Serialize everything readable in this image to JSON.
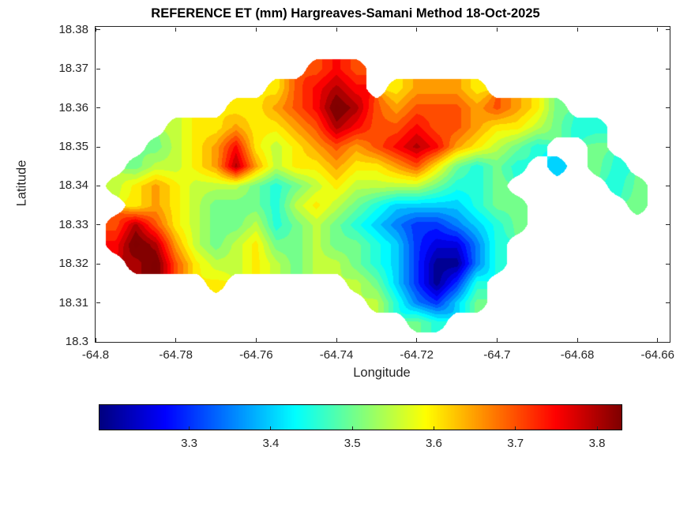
{
  "colors": {
    "background": "#ffffff",
    "axis_frame": "#262626",
    "axis_text": "#262626",
    "title_text": "#000000",
    "colorbar_border": "#000000"
  },
  "chart_data": {
    "type": "heatmap",
    "subtype": "filled-contour-map",
    "title": "REFERENCE ET (mm) Hargreaves-Samani Method  18-Oct-2025",
    "xlabel": "Longitude",
    "ylabel": "Latitude",
    "xlim": [
      -64.8,
      -64.657
    ],
    "ylim": [
      18.3,
      18.3808
    ],
    "xticks": [
      -64.8,
      -64.78,
      -64.76,
      -64.74,
      -64.72,
      -64.7,
      -64.68,
      -64.66
    ],
    "xtick_labels": [
      "-64.8",
      "-64.78",
      "-64.76",
      "-64.74",
      "-64.72",
      "-64.7",
      "-64.68",
      "-64.66"
    ],
    "yticks": [
      18.3,
      18.31,
      18.32,
      18.33,
      18.34,
      18.35,
      18.36,
      18.37,
      18.38
    ],
    "ytick_labels": [
      "18.3",
      "18.31",
      "18.32",
      "18.33",
      "18.34",
      "18.35",
      "18.36",
      "18.37",
      "18.38"
    ],
    "colormap": "jet",
    "vmin": 3.19,
    "vmax": 3.83,
    "contour_interval": 0.025,
    "legend": "none",
    "grid_lines": "off",
    "colorbar": {
      "orientation": "horizontal",
      "ticks": [
        3.3,
        3.4,
        3.5,
        3.6,
        3.7,
        3.8
      ],
      "tick_labels": [
        "3.3",
        "3.4",
        "3.5",
        "3.6",
        "3.7",
        "3.8"
      ]
    },
    "grid": {
      "lon_start": -64.8,
      "lon_step": 0.005,
      "lat_start": 18.3,
      "lat_step": 0.005,
      "row_order": "south-to-north",
      "values": [
        [
          null,
          null,
          null,
          null,
          null,
          null,
          null,
          null,
          null,
          null,
          null,
          null,
          null,
          null,
          null,
          null,
          null,
          null,
          null,
          null,
          null,
          null,
          null,
          null,
          null,
          null,
          null,
          null,
          null
        ],
        [
          null,
          null,
          null,
          null,
          null,
          null,
          null,
          null,
          null,
          null,
          null,
          null,
          null,
          null,
          null,
          null,
          3.5,
          3.45,
          null,
          null,
          null,
          null,
          null,
          null,
          null,
          null,
          null,
          null,
          null
        ],
        [
          null,
          null,
          null,
          null,
          null,
          null,
          null,
          null,
          null,
          null,
          null,
          null,
          null,
          null,
          3.55,
          3.45,
          3.35,
          3.3,
          3.4,
          3.5,
          null,
          null,
          null,
          null,
          null,
          null,
          null,
          null,
          null
        ],
        [
          null,
          null,
          null,
          null,
          null,
          null,
          3.6,
          null,
          null,
          null,
          null,
          null,
          null,
          3.55,
          3.5,
          3.4,
          3.3,
          3.2,
          3.3,
          3.45,
          null,
          null,
          null,
          null,
          null,
          null,
          null,
          null,
          null
        ],
        [
          null,
          null,
          3.8,
          3.85,
          3.7,
          3.6,
          3.55,
          3.55,
          3.6,
          3.55,
          3.5,
          3.55,
          3.55,
          3.5,
          3.45,
          3.4,
          3.3,
          3.2,
          3.2,
          3.35,
          3.45,
          null,
          null,
          null,
          null,
          null,
          null,
          null,
          null
        ],
        [
          null,
          3.75,
          3.85,
          3.8,
          3.65,
          3.55,
          3.5,
          3.55,
          3.6,
          3.5,
          3.5,
          3.55,
          3.5,
          3.5,
          3.45,
          3.4,
          3.3,
          3.25,
          3.25,
          3.35,
          3.45,
          null,
          null,
          null,
          null,
          null,
          null,
          null,
          null
        ],
        [
          null,
          3.7,
          3.8,
          3.7,
          3.6,
          3.55,
          3.5,
          3.5,
          3.55,
          3.45,
          3.5,
          3.55,
          3.5,
          3.45,
          3.4,
          3.35,
          3.3,
          3.3,
          3.35,
          3.4,
          3.45,
          3.5,
          null,
          null,
          null,
          null,
          null,
          null,
          null
        ],
        [
          null,
          null,
          3.6,
          3.65,
          3.6,
          3.55,
          3.5,
          3.5,
          3.5,
          3.45,
          3.55,
          3.6,
          3.55,
          3.5,
          3.45,
          3.4,
          3.4,
          3.4,
          3.4,
          3.45,
          3.5,
          3.5,
          null,
          null,
          null,
          null,
          null,
          3.5,
          null
        ],
        [
          null,
          3.55,
          3.6,
          3.65,
          3.6,
          3.55,
          3.55,
          3.55,
          3.5,
          3.45,
          3.5,
          3.55,
          3.6,
          3.55,
          3.55,
          3.55,
          3.55,
          3.5,
          3.45,
          3.45,
          3.5,
          null,
          null,
          null,
          null,
          null,
          3.45,
          3.5,
          null
        ],
        [
          null,
          null,
          3.5,
          3.55,
          3.55,
          3.6,
          3.65,
          3.8,
          3.65,
          3.55,
          3.6,
          3.6,
          3.65,
          3.6,
          3.6,
          3.65,
          3.7,
          3.6,
          3.5,
          3.45,
          3.5,
          3.45,
          null,
          3.4,
          null,
          3.5,
          3.45,
          null,
          null
        ],
        [
          null,
          null,
          null,
          3.5,
          3.55,
          3.6,
          3.65,
          3.75,
          3.6,
          3.55,
          3.6,
          3.65,
          3.7,
          3.65,
          3.7,
          3.75,
          3.8,
          3.75,
          3.65,
          3.6,
          3.55,
          3.5,
          3.45,
          null,
          null,
          3.5,
          null,
          null,
          null
        ],
        [
          null,
          null,
          null,
          null,
          3.55,
          3.6,
          3.6,
          3.65,
          3.6,
          3.6,
          3.65,
          3.7,
          3.8,
          3.75,
          3.7,
          3.7,
          3.75,
          3.7,
          3.7,
          3.65,
          3.6,
          3.6,
          3.55,
          3.5,
          3.45,
          3.45,
          null,
          null,
          null
        ],
        [
          null,
          null,
          null,
          null,
          null,
          null,
          null,
          3.6,
          3.6,
          3.65,
          3.7,
          3.75,
          3.85,
          3.8,
          3.7,
          3.65,
          3.7,
          3.7,
          3.7,
          3.65,
          3.7,
          3.65,
          3.6,
          3.5,
          null,
          null,
          null,
          null,
          null
        ],
        [
          null,
          null,
          null,
          null,
          null,
          null,
          null,
          null,
          null,
          3.6,
          3.7,
          3.75,
          3.8,
          3.75,
          null,
          3.6,
          3.65,
          3.65,
          3.65,
          3.6,
          null,
          null,
          null,
          null,
          null,
          null,
          null,
          null,
          null
        ],
        [
          null,
          null,
          null,
          null,
          null,
          null,
          null,
          null,
          null,
          null,
          null,
          3.7,
          3.75,
          3.7,
          null,
          null,
          null,
          null,
          null,
          null,
          null,
          null,
          null,
          null,
          null,
          null,
          null,
          null,
          null
        ],
        [
          null,
          null,
          null,
          null,
          null,
          null,
          null,
          null,
          null,
          null,
          null,
          null,
          null,
          null,
          null,
          null,
          null,
          null,
          null,
          null,
          null,
          null,
          null,
          null,
          null,
          null,
          null,
          null,
          null
        ],
        [
          null,
          null,
          null,
          null,
          null,
          null,
          null,
          null,
          null,
          null,
          null,
          null,
          null,
          null,
          null,
          null,
          null,
          null,
          null,
          null,
          null,
          null,
          null,
          null,
          null,
          null,
          null,
          null,
          null
        ]
      ]
    }
  }
}
